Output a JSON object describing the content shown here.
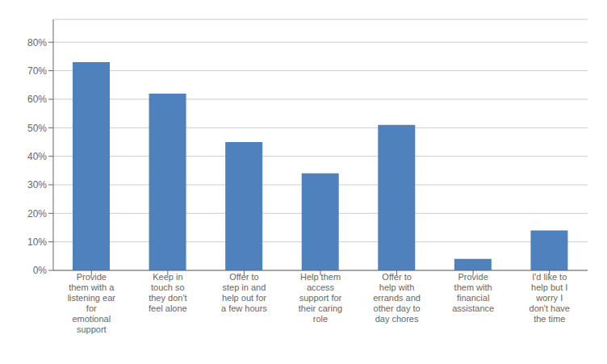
{
  "chart_data": {
    "type": "bar",
    "categories": [
      "Provide\nthem with a\nlistening ear\nfor\nemotional\nsupport",
      "Keep in\ntouch so\nthey don't\nfeel alone",
      "Offer to\nstep in and\nhelp out for\na few hours",
      "Help them\naccess\nsupport for\ntheir caring\nrole",
      "Offer to\nhelp with\nerrands and\nother day to\nday chores",
      "Provide\nthem with\nfinancial\nassistance",
      "I'd like to\nhelp but I\nworry I\ndon't have\nthe time"
    ],
    "values": [
      0.73,
      0.62,
      0.45,
      0.34,
      0.51,
      0.04,
      0.14
    ],
    "color": "#4F81BD",
    "ylim": [
      0,
      0.88
    ],
    "yticks": [
      {
        "value": 0.0,
        "label": "0%"
      },
      {
        "value": 0.1,
        "label": "10%"
      },
      {
        "value": 0.2,
        "label": "20%"
      },
      {
        "value": 0.3,
        "label": "30%"
      },
      {
        "value": 0.4,
        "label": "40%"
      },
      {
        "value": 0.5,
        "label": "50%"
      },
      {
        "value": 0.6,
        "label": "60%"
      },
      {
        "value": 0.7,
        "label": "70%"
      },
      {
        "value": 0.8,
        "label": "80%"
      }
    ],
    "grid": true
  }
}
